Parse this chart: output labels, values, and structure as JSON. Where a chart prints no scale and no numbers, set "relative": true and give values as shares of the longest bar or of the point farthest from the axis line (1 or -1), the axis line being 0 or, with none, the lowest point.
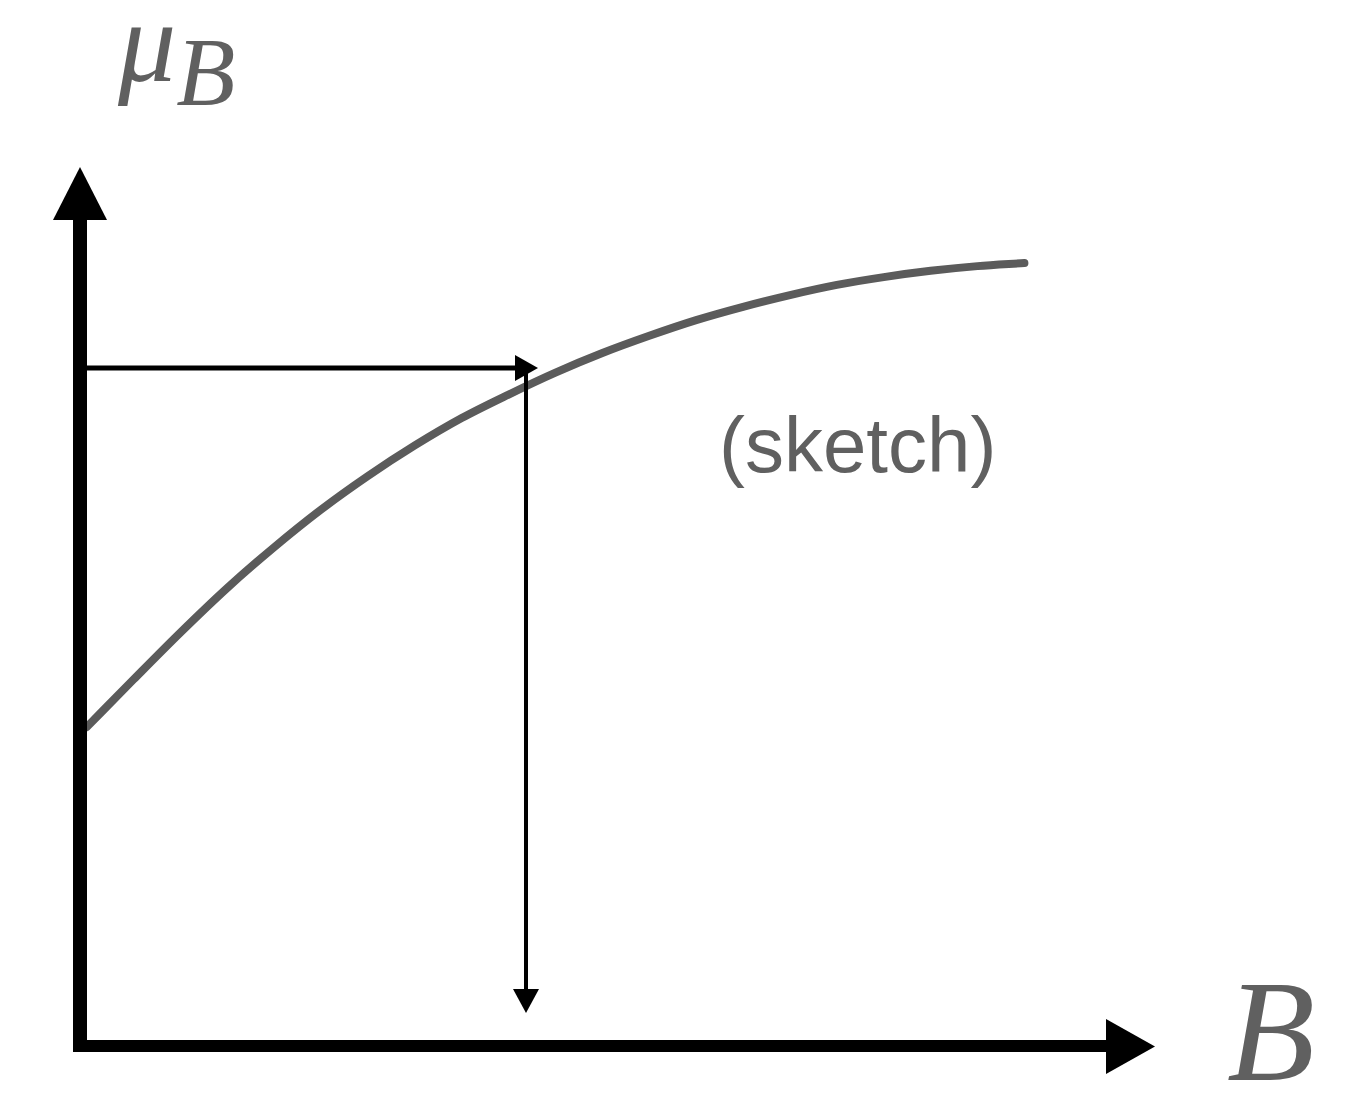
{
  "chart_data": {
    "type": "line",
    "relative": true,
    "categories": [
      null,
      null,
      null,
      null,
      null,
      null,
      null,
      null,
      null,
      null,
      null,
      null,
      null,
      null,
      null,
      null,
      null,
      null,
      null,
      null,
      null
    ],
    "series": [
      {
        "color": "#5b5b5b",
        "values": [
          0.407,
          0.468,
          0.528,
          0.585,
          0.637,
          0.685,
          0.728,
          0.767,
          0.802,
          0.832,
          0.86,
          0.885,
          0.907,
          0.927,
          0.944,
          0.959,
          0.972,
          0.982,
          0.99,
          0.996,
          1.0
        ]
      }
    ],
    "xlabel": "B",
    "ylabel": "μ$_{B}$",
    "annotations": [
      "(sketch)"
    ],
    "marker": "none",
    "line_style": "solid"
  }
}
